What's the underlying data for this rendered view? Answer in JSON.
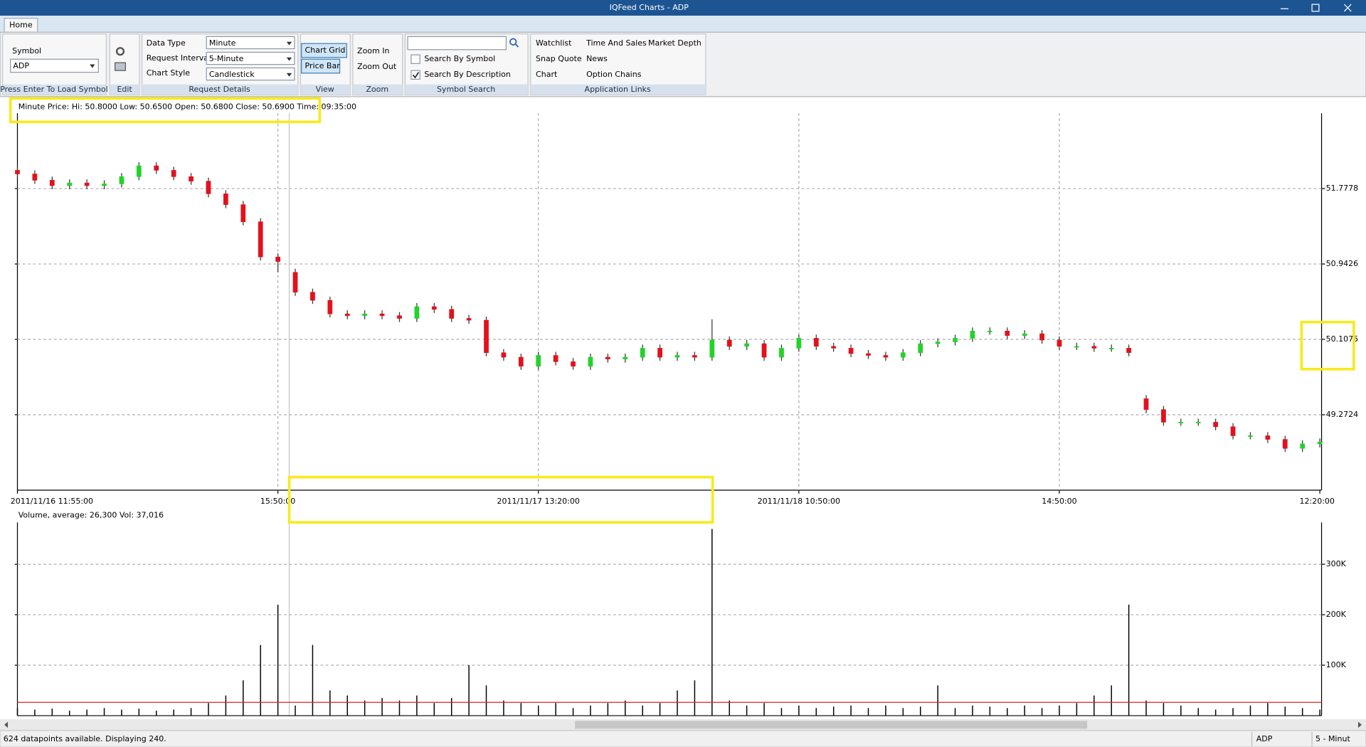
{
  "window": {
    "title": "IQFeed Charts - ADP"
  },
  "ribbon": {
    "tab": "Home",
    "symbol_label": "Symbol",
    "symbol": "ADP",
    "symbol_group": "Press Enter To Load Symbol",
    "edit_group": "Edit",
    "data_type_label": "Data Type",
    "data_type": "Minute",
    "request_interval_label": "Request Interval",
    "request_interval": "5-Minute",
    "chart_style_label": "Chart Style",
    "chart_style": "Candlestick",
    "request_group": "Request Details",
    "chart_grid": "Chart Grid",
    "price_bar": "Price Bar",
    "view_group": "View",
    "zoom_in": "Zoom In",
    "zoom_out": "Zoom Out",
    "zoom_group": "Zoom",
    "search_by_symbol": {
      "label": "Search By Symbol",
      "checked": false
    },
    "search_by_description": {
      "label": "Search By Description",
      "checked": true
    },
    "search_group": "Symbol Search",
    "links": [
      "Watchlist",
      "Time And Sales",
      "Market Depth",
      "Snap Quote",
      "News",
      "Chart",
      "Option Chains"
    ],
    "links_group": "Application Links"
  },
  "chart_data": [
    {
      "type": "candlestick",
      "info": "Minute Price: Hi: 50.8000 Low: 50.6500 Open: 50.6800 Close: 50.6900 Time: 09:35:00",
      "categories": [
        "2011/11/16 11:55:00",
        null,
        null,
        null,
        null,
        null,
        null,
        null,
        null,
        null,
        null,
        null,
        null,
        null,
        null,
        "15:50:00",
        null,
        null,
        null,
        null,
        null,
        null,
        null,
        null,
        null,
        null,
        null,
        null,
        null,
        null,
        "2011/11/17 13:20:00",
        null,
        null,
        null,
        null,
        null,
        null,
        null,
        null,
        null,
        null,
        null,
        null,
        null,
        null,
        "2011/11/18 10:50:00",
        null,
        null,
        null,
        null,
        null,
        null,
        null,
        null,
        null,
        null,
        null,
        null,
        null,
        null,
        "14:50:00",
        null,
        null,
        null,
        null,
        null,
        null,
        null,
        null,
        null,
        null,
        null,
        null,
        null,
        null,
        "12:20:00"
      ],
      "open": [
        51.98,
        51.94,
        51.87,
        51.81,
        51.84,
        51.81,
        51.83,
        51.91,
        52.03,
        51.98,
        51.91,
        51.86,
        51.72,
        51.6,
        51.41,
        51.02,
        50.85,
        50.63,
        50.54,
        50.39,
        50.37,
        50.39,
        50.37,
        50.34,
        50.47,
        50.44,
        50.34,
        50.32,
        49.96,
        49.91,
        49.81,
        49.93,
        49.86,
        49.81,
        49.91,
        49.89,
        49.91,
        50.01,
        49.91,
        49.93,
        49.91,
        50.1,
        50.03,
        50.06,
        49.91,
        50.01,
        50.12,
        50.03,
        50.01,
        49.95,
        49.93,
        49.91,
        49.96,
        50.06,
        50.08,
        50.12,
        50.2,
        50.2,
        50.15,
        50.17,
        50.1,
        50.03,
        50.03,
        50.01,
        50.01,
        49.45,
        49.33,
        49.19,
        49.19,
        49.19,
        49.14,
        49.04,
        49.04,
        49.0,
        48.9,
        48.95
      ],
      "high": [
        52.02,
        51.98,
        51.91,
        51.88,
        51.88,
        51.87,
        51.95,
        52.07,
        52.07,
        52.02,
        51.95,
        51.9,
        51.76,
        51.64,
        51.45,
        51.06,
        50.89,
        50.67,
        50.58,
        50.43,
        50.43,
        50.43,
        50.41,
        50.51,
        50.51,
        50.48,
        50.38,
        50.36,
        50.0,
        49.95,
        49.97,
        49.97,
        49.9,
        49.95,
        49.95,
        49.95,
        50.05,
        50.05,
        49.97,
        49.97,
        50.33,
        50.14,
        50.1,
        50.1,
        50.05,
        50.16,
        50.16,
        50.07,
        50.05,
        49.99,
        49.97,
        50.0,
        50.1,
        50.12,
        50.16,
        50.24,
        50.24,
        50.24,
        50.21,
        50.21,
        50.14,
        50.07,
        50.07,
        50.05,
        50.05,
        49.49,
        49.37,
        49.23,
        49.23,
        49.23,
        49.18,
        49.08,
        49.08,
        49.04,
        48.99,
        49.01
      ],
      "low": [
        51.9,
        51.83,
        51.77,
        51.77,
        51.77,
        51.77,
        51.79,
        51.87,
        51.94,
        51.87,
        51.82,
        51.68,
        51.56,
        51.37,
        50.98,
        50.85,
        50.59,
        50.5,
        50.35,
        50.33,
        50.33,
        50.33,
        50.3,
        50.3,
        50.4,
        50.3,
        50.28,
        49.92,
        49.87,
        49.77,
        49.77,
        49.82,
        49.77,
        49.77,
        49.85,
        49.85,
        49.87,
        49.87,
        49.87,
        49.87,
        49.87,
        49.99,
        49.99,
        49.87,
        49.87,
        49.97,
        49.99,
        49.97,
        49.91,
        49.89,
        49.87,
        49.87,
        49.92,
        50.02,
        50.04,
        50.08,
        50.16,
        50.11,
        50.11,
        50.06,
        49.99,
        49.99,
        49.97,
        49.97,
        49.92,
        49.29,
        49.15,
        49.15,
        49.15,
        49.1,
        49.0,
        49.0,
        48.96,
        48.86,
        48.86,
        48.91
      ],
      "close": [
        51.94,
        51.87,
        51.81,
        51.84,
        51.81,
        51.83,
        51.91,
        52.03,
        51.98,
        51.91,
        51.86,
        51.72,
        51.6,
        51.41,
        51.02,
        50.97,
        50.63,
        50.54,
        50.39,
        50.37,
        50.39,
        50.37,
        50.34,
        50.47,
        50.44,
        50.34,
        50.32,
        49.96,
        49.91,
        49.81,
        49.93,
        49.86,
        49.81,
        49.91,
        49.89,
        49.91,
        50.01,
        49.91,
        49.93,
        49.91,
        50.1,
        50.03,
        50.06,
        49.91,
        50.01,
        50.12,
        50.03,
        50.01,
        49.95,
        49.93,
        49.91,
        49.96,
        50.06,
        50.08,
        50.12,
        50.2,
        50.2,
        50.15,
        50.17,
        50.1,
        50.03,
        50.03,
        50.01,
        50.01,
        49.96,
        49.33,
        49.19,
        49.19,
        49.19,
        49.14,
        49.04,
        49.04,
        49.0,
        48.9,
        48.95,
        48.97
      ],
      "up_color": "#22d32a",
      "down_color": "#e3111c",
      "ylim": [
        48.4373,
        52.6129
      ],
      "yticks": [
        49.2724,
        50.1075,
        50.9426,
        51.7778
      ],
      "grid": true
    },
    {
      "type": "bar",
      "legend": "Volume, average: 26,300 Vol: 37,016",
      "average": 26300,
      "average_color": "#e0201c",
      "color": "#000000",
      "values": [
        15000,
        12000,
        14000,
        10000,
        12000,
        15000,
        12000,
        14000,
        10000,
        12000,
        15000,
        25000,
        40000,
        70000,
        140000,
        220000,
        20000,
        140000,
        50000,
        40000,
        30000,
        35000,
        30000,
        40000,
        25000,
        35000,
        100000,
        60000,
        30000,
        25000,
        20000,
        25000,
        15000,
        20000,
        25000,
        30000,
        20000,
        25000,
        50000,
        70000,
        370000,
        30000,
        20000,
        25000,
        15000,
        20000,
        15000,
        18000,
        20000,
        15000,
        20000,
        15000,
        18000,
        60000,
        15000,
        20000,
        18000,
        15000,
        20000,
        15000,
        20000,
        25000,
        40000,
        60000,
        220000,
        30000,
        25000,
        20000,
        15000,
        12000,
        15000,
        20000,
        25000,
        18000,
        15000,
        12000
      ],
      "ylim": [
        0,
        383000
      ],
      "yticks": [
        {
          "value": 100000,
          "label": "100K"
        },
        {
          "value": 200000,
          "label": "200K"
        },
        {
          "value": 300000,
          "label": "300K"
        }
      ],
      "grid": true
    }
  ],
  "status": {
    "message": "624 datapoints available.  Displaying 240.",
    "symbol": "ADP",
    "interval": "5 - Minut"
  }
}
